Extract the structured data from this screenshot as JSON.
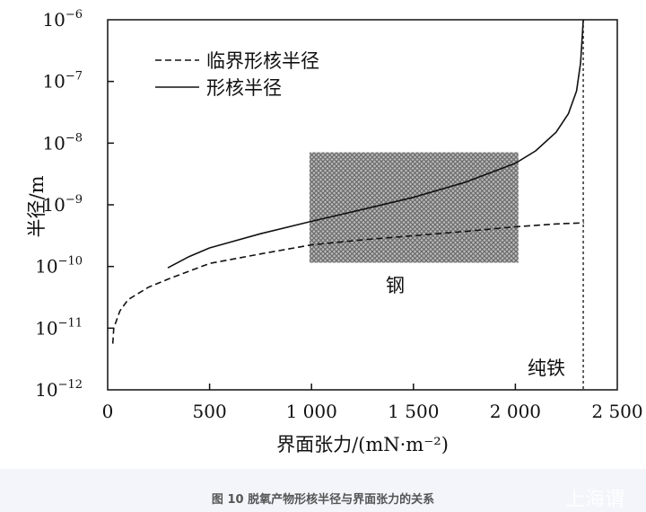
{
  "chart_data": {
    "type": "line",
    "title": "",
    "xlabel": "界面张力/(mN·m⁻²)",
    "ylabel": "半径/m",
    "xlim": [
      0,
      2500
    ],
    "ylim": [
      1e-12,
      1e-06
    ],
    "yscale": "log",
    "grid": false,
    "legend_placement": "top-left",
    "x_ticks": [
      0,
      500,
      1000,
      1500,
      2000,
      2500
    ],
    "x_tick_labels": [
      "0",
      "500",
      "1 000",
      "1 500",
      "2 000",
      "2 500"
    ],
    "y_tick_exponents": [
      "-6",
      "-7",
      "-8",
      "-9",
      "-10",
      "-11",
      "-12"
    ],
    "y_tick_base": "10",
    "series": [
      {
        "name": "临界形核半径",
        "style": "dashed",
        "x": [
          25,
          30,
          60,
          100,
          200,
          300,
          500,
          750,
          1000,
          1250,
          1500,
          1750,
          2000,
          2200,
          2333
        ],
        "y": [
          5.6e-12,
          1e-11,
          1.9e-11,
          2.9e-11,
          4.6e-11,
          6.3e-11,
          1.12e-10,
          1.6e-10,
          2.24e-10,
          2.7e-10,
          3.16e-10,
          3.7e-10,
          4.4e-10,
          4.9e-10,
          5.1e-10
        ]
      },
      {
        "name": "形核半径",
        "style": "solid",
        "x": [
          295,
          400,
          500,
          750,
          1000,
          1250,
          1500,
          1750,
          2000,
          2100,
          2200,
          2260,
          2300,
          2320,
          2333
        ],
        "y": [
          9.5e-11,
          1.45e-10,
          2e-10,
          3.4e-10,
          5.4e-10,
          8.4e-10,
          1.32e-09,
          2.3e-09,
          4.7e-09,
          7.5e-09,
          1.5e-08,
          3e-08,
          7e-08,
          2e-07,
          1e-06
        ]
      }
    ],
    "vertical_line": {
      "x": 2333,
      "style": "dotted",
      "label": "纯铁"
    },
    "shaded_region": {
      "x": [
        990,
        2015
      ],
      "y": [
        1.15e-10,
        7.1e-09
      ],
      "pattern": "crosshatch",
      "label": "钢"
    }
  },
  "caption": "图 10 脱氧产物形核半径与界面张力的关系",
  "watermark": "上海谓"
}
